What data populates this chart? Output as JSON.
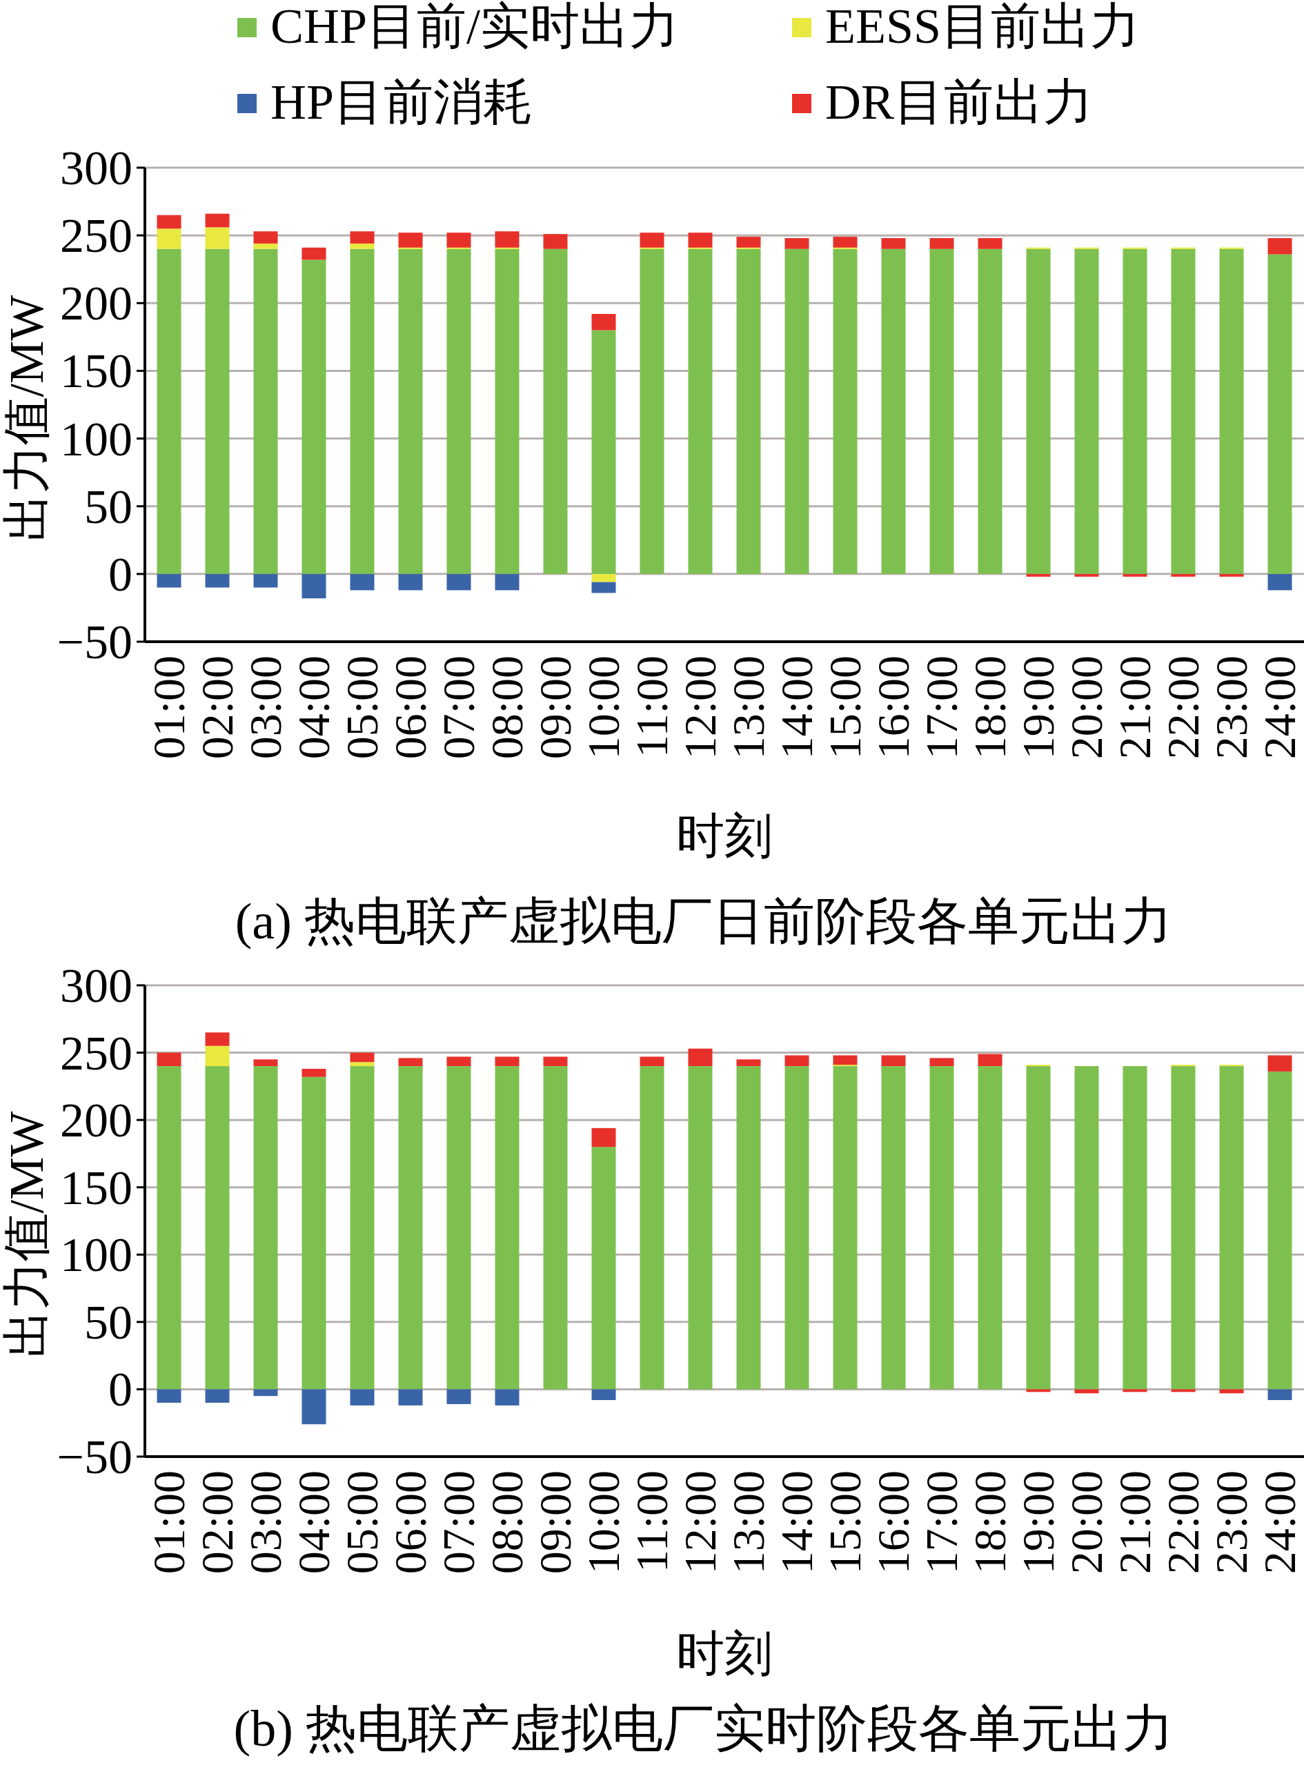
{
  "chart_data": [
    {
      "type": "bar",
      "title": "(a) 热电联产虚拟电厂日前阶段各单元出力",
      "xlabel": "时刻",
      "ylabel": "出力值/MW",
      "categories": [
        "01:00",
        "02:00",
        "03:00",
        "04:00",
        "05:00",
        "06:00",
        "07:00",
        "08:00",
        "09:00",
        "10:00",
        "11:00",
        "12:00",
        "13:00",
        "14:00",
        "15:00",
        "16:00",
        "17:00",
        "18:00",
        "19:00",
        "20:00",
        "21:00",
        "22:00",
        "23:00",
        "24:00"
      ],
      "stacked": true,
      "ylim": [
        -50,
        300
      ],
      "yticks": [
        {
          "value": -50,
          "label": "−50"
        },
        0,
        50,
        100,
        150,
        200,
        250,
        300
      ],
      "grid": "y",
      "legend": "top",
      "series": [
        {
          "name": "CHP目前/实时出力",
          "color": "#7dc04f",
          "values": [
            240,
            240,
            240,
            232,
            240,
            240,
            240,
            240,
            240,
            180,
            240,
            240,
            240,
            240,
            240,
            240,
            240,
            240,
            240,
            240,
            240,
            240,
            240,
            236
          ]
        },
        {
          "name": "EESS目前出力",
          "color": "#e8e840",
          "values": [
            15,
            16,
            4,
            0,
            4,
            1,
            1,
            1,
            0,
            -6,
            1,
            1,
            1,
            0,
            1,
            0,
            0,
            0,
            1,
            1,
            1,
            1,
            1,
            0
          ]
        },
        {
          "name": "HP目前消耗",
          "color": "#3a64a8",
          "values": [
            -10,
            -10,
            -10,
            -18,
            -12,
            -12,
            -12,
            -12,
            0,
            -8,
            0,
            0,
            0,
            0,
            0,
            0,
            0,
            0,
            0,
            0,
            0,
            0,
            0,
            -12
          ]
        },
        {
          "name": "DR目前出力",
          "color": "#e8302a",
          "values": [
            10,
            10,
            9,
            9,
            9,
            11,
            11,
            12,
            11,
            12,
            11,
            11,
            8,
            8,
            8,
            8,
            8,
            8,
            -2,
            -2,
            -2,
            -2,
            -2,
            12
          ]
        }
      ]
    },
    {
      "type": "bar",
      "title": "(b) 热电联产虚拟电厂实时阶段各单元出力",
      "xlabel": "时刻",
      "ylabel": "出力值/MW",
      "categories": [
        "01:00",
        "02:00",
        "03:00",
        "04:00",
        "05:00",
        "06:00",
        "07:00",
        "08:00",
        "09:00",
        "10:00",
        "11:00",
        "12:00",
        "13:00",
        "14:00",
        "15:00",
        "16:00",
        "17:00",
        "18:00",
        "19:00",
        "20:00",
        "21:00",
        "22:00",
        "23:00",
        "24:00"
      ],
      "stacked": true,
      "ylim": [
        -50,
        300
      ],
      "yticks": [
        {
          "value": -50,
          "label": "−50"
        },
        0,
        50,
        100,
        150,
        200,
        250,
        300
      ],
      "grid": "y",
      "series": [
        {
          "color": "#7dc04f",
          "values": [
            240,
            240,
            240,
            232,
            240,
            240,
            240,
            240,
            240,
            180,
            240,
            240,
            240,
            240,
            240,
            240,
            240,
            240,
            240,
            240,
            240,
            240,
            240,
            236
          ]
        },
        {
          "color": "#e8e840",
          "values": [
            0,
            15,
            0,
            0,
            3,
            0,
            0,
            0,
            0,
            0,
            0,
            0,
            0,
            0,
            1,
            0,
            0,
            0,
            1,
            0,
            0,
            1,
            1,
            0
          ]
        },
        {
          "color": "#3a64a8",
          "values": [
            -10,
            -10,
            -5,
            -26,
            -12,
            -12,
            -11,
            -12,
            0,
            -8,
            0,
            0,
            0,
            0,
            0,
            0,
            0,
            0,
            0,
            0,
            0,
            0,
            0,
            -8
          ]
        },
        {
          "color": "#e8302a",
          "values": [
            10,
            10,
            5,
            6,
            7,
            6,
            7,
            7,
            7,
            14,
            7,
            13,
            5,
            8,
            7,
            8,
            6,
            9,
            -2,
            -3,
            -2,
            -2,
            -3,
            12
          ]
        }
      ]
    }
  ]
}
